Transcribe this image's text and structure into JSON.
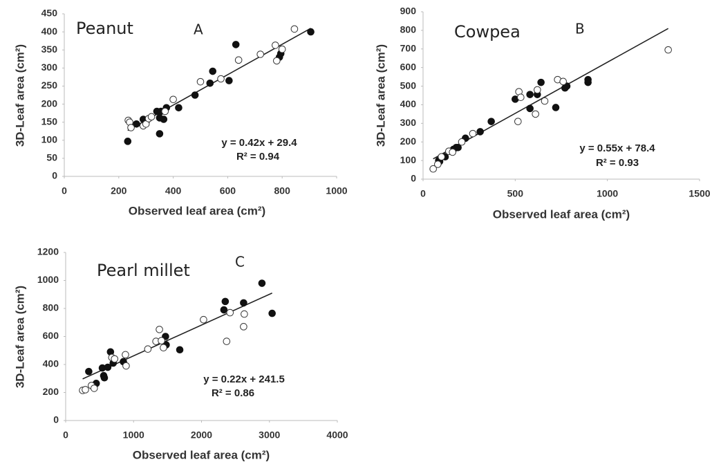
{
  "chart_data": [
    {
      "type": "scatter",
      "title": "Peanut",
      "panel": "A",
      "x_label": "Observed leaf area (cm²)",
      "y_label": "3D-Leaf area (cm²)",
      "annotations": [
        "y = 0.42x + 29.4",
        "R² = 0.94"
      ],
      "xlim": [
        0,
        1000
      ],
      "xticks": [
        0,
        200,
        400,
        600,
        800,
        1000
      ],
      "ylim": [
        0,
        450
      ],
      "yticks": [
        0,
        50,
        100,
        150,
        200,
        250,
        300,
        350,
        400,
        450
      ],
      "series": [
        {
          "color": "#111111",
          "marker": "filled",
          "x": [
            233,
            265,
            290,
            300,
            340,
            350,
            350,
            355,
            365,
            375,
            420,
            480,
            535,
            545,
            605,
            630,
            790,
            795,
            905
          ],
          "values": [
            97,
            145,
            158,
            150,
            180,
            118,
            162,
            180,
            158,
            190,
            190,
            225,
            258,
            291,
            265,
            365,
            330,
            340,
            400
          ]
        },
        {
          "color": "#333333",
          "marker": "open",
          "x": [
            235,
            240,
            245,
            290,
            300,
            310,
            320,
            370,
            400,
            500,
            575,
            640,
            720,
            775,
            780,
            800,
            845
          ],
          "values": [
            155,
            150,
            135,
            140,
            145,
            160,
            165,
            180,
            213,
            262,
            270,
            322,
            338,
            363,
            320,
            352,
            408
          ]
        }
      ],
      "trendline": {
        "color": "#222222",
        "x": [
          233,
          905
        ],
        "values": [
          127,
          410
        ]
      }
    },
    {
      "type": "scatter",
      "title": "Cowpea",
      "panel": "B",
      "x_label": "Observed leaf area (cm²)",
      "y_label": "3D-Leaf area (cm²)",
      "annotations": [
        "y = 0.55x + 78.4",
        "R² = 0.93"
      ],
      "xlim": [
        0,
        1500
      ],
      "xticks": [
        0,
        500,
        1000,
        1500
      ],
      "ylim": [
        0,
        900
      ],
      "yticks": [
        0,
        100,
        200,
        300,
        400,
        500,
        600,
        700,
        800,
        900
      ],
      "series": [
        {
          "color": "#111111",
          "marker": "filled",
          "x": [
            85,
            90,
            120,
            150,
            165,
            180,
            190,
            230,
            310,
            370,
            500,
            580,
            580,
            620,
            640,
            720,
            770,
            780,
            895,
            895
          ],
          "values": [
            100,
            95,
            120,
            150,
            160,
            170,
            170,
            220,
            255,
            310,
            430,
            380,
            455,
            455,
            520,
            385,
            490,
            500,
            520,
            535
          ]
        },
        {
          "color": "#333333",
          "marker": "open",
          "x": [
            55,
            80,
            100,
            140,
            160,
            210,
            270,
            515,
            520,
            530,
            610,
            620,
            660,
            730,
            760,
            1330
          ],
          "values": [
            55,
            80,
            120,
            150,
            145,
            200,
            245,
            310,
            470,
            440,
            350,
            480,
            420,
            535,
            525,
            695
          ]
        }
      ],
      "trendline": {
        "color": "#222222",
        "x": [
          55,
          1330
        ],
        "values": [
          109,
          810
        ]
      }
    },
    {
      "type": "scatter",
      "title": "Pearl millet",
      "panel": "C",
      "x_label": "Observed leaf area (cm²)",
      "y_label": "3D-Leaf area (cm²)",
      "annotations": [
        "y = 0.22x + 241.5",
        "R² = 0.86"
      ],
      "xlim": [
        0,
        4000
      ],
      "xticks": [
        0,
        1000,
        2000,
        3000,
        4000
      ],
      "ylim": [
        0,
        1200
      ],
      "yticks": [
        0,
        200,
        400,
        600,
        800,
        1000,
        1200
      ],
      "series": [
        {
          "color": "#111111",
          "marker": "filled",
          "x": [
            340,
            450,
            540,
            560,
            570,
            620,
            660,
            700,
            850,
            1470,
            1480,
            1680,
            2330,
            2350,
            2620,
            2890,
            3040
          ],
          "values": [
            350,
            265,
            375,
            320,
            305,
            380,
            490,
            410,
            420,
            600,
            540,
            505,
            790,
            850,
            840,
            980,
            765
          ]
        },
        {
          "color": "#333333",
          "marker": "open",
          "x": [
            250,
            290,
            380,
            420,
            680,
            720,
            880,
            890,
            1210,
            1330,
            1380,
            1410,
            1440,
            2030,
            2370,
            2420,
            2620,
            2630
          ],
          "values": [
            215,
            220,
            250,
            230,
            450,
            440,
            470,
            390,
            510,
            565,
            650,
            570,
            520,
            720,
            565,
            770,
            670,
            760
          ]
        }
      ],
      "trendline": {
        "color": "#222222",
        "x": [
          250,
          3040
        ],
        "values": [
          297,
          910
        ]
      }
    }
  ]
}
